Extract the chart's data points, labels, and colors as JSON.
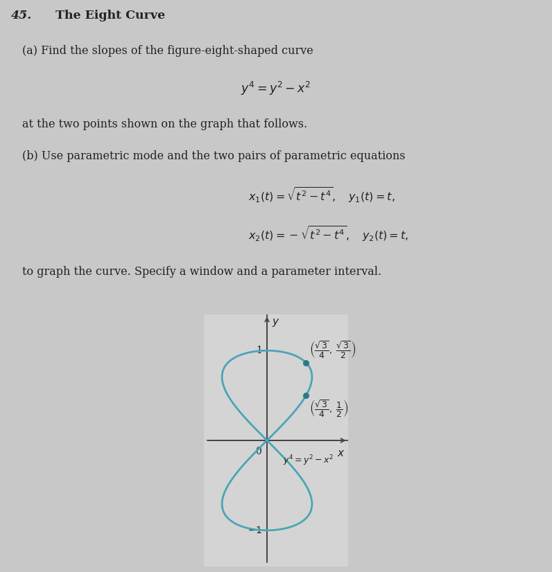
{
  "title_number": "45.",
  "title_bold": "The Eight Curve",
  "part_a_line1": "(a) Find the slopes of the figure-eight-shaped curve",
  "equation_main": "$y^4 = y^2 - x^2$",
  "part_a_line2": "at the two points shown on the graph that follows.",
  "part_b_line1": "(b) Use parametric mode and the two pairs of parametric equations",
  "eq_x1": "$x_1(t) = \\sqrt{t^2 - t^4},\\quad y_1(t) = t,$",
  "eq_x2": "$x_2(t) = -\\sqrt{t^2 - t^4},\\quad y_2(t) = t,$",
  "part_b_line2": "to graph the curve. Specify a window and a parameter interval.",
  "point1": [
    0.4330127,
    0.8660254
  ],
  "point2": [
    0.4330127,
    0.5
  ],
  "curve_color": "#4aa5b5",
  "point_color": "#2b7a8a",
  "axes_color": "#444444",
  "text_color": "#222222",
  "bg_color": "#c8c8c8",
  "plot_bg_color": "#d4d4d4",
  "xlim": [
    -0.7,
    0.9
  ],
  "ylim": [
    -1.4,
    1.4
  ]
}
